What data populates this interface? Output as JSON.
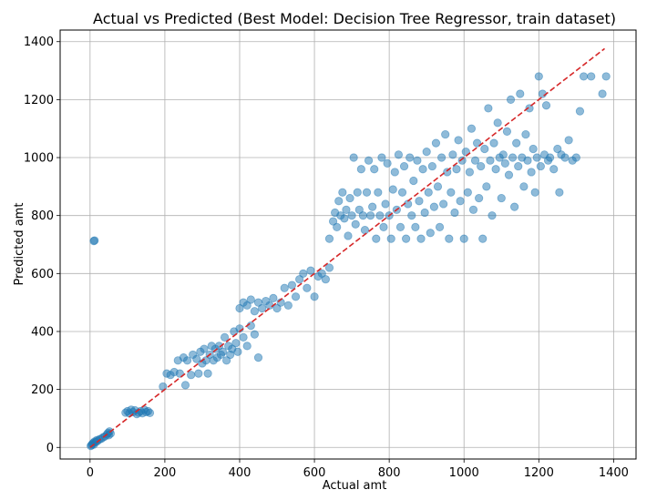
{
  "chart_data": {
    "type": "scatter",
    "title": "Actual vs Predicted (Best Model: Decision Tree Regressor, train dataset)",
    "xlabel": "Actual amt",
    "ylabel": "Predicted amt",
    "xlim": [
      -80,
      1460
    ],
    "ylim": [
      -40,
      1440
    ],
    "xticks": [
      0,
      200,
      400,
      600,
      800,
      1000,
      1200,
      1400
    ],
    "yticks": [
      0,
      200,
      400,
      600,
      800,
      1000,
      1200,
      1400
    ],
    "grid": true,
    "point_color": "#1f77b4",
    "point_alpha": 0.5,
    "reference_line": {
      "style": "dashed",
      "color": "#d62728",
      "x": [
        0,
        1376
      ],
      "y": [
        0,
        1376
      ]
    },
    "series": [
      {
        "points": [
          [
            2,
            5
          ],
          [
            4,
            8
          ],
          [
            6,
            12
          ],
          [
            8,
            15
          ],
          [
            10,
            10
          ],
          [
            12,
            20
          ],
          [
            15,
            18
          ],
          [
            18,
            25
          ],
          [
            20,
            22
          ],
          [
            25,
            28
          ],
          [
            30,
            30
          ],
          [
            35,
            35
          ],
          [
            40,
            38
          ],
          [
            45,
            45
          ],
          [
            48,
            50
          ],
          [
            50,
            42
          ],
          [
            52,
            55
          ],
          [
            55,
            48
          ],
          [
            10,
            712
          ],
          [
            12,
            714
          ],
          [
            95,
            120
          ],
          [
            100,
            125
          ],
          [
            105,
            118
          ],
          [
            110,
            130
          ],
          [
            115,
            122
          ],
          [
            120,
            128
          ],
          [
            125,
            115
          ],
          [
            130,
            120
          ],
          [
            135,
            125
          ],
          [
            140,
            118
          ],
          [
            145,
            130
          ],
          [
            150,
            122
          ],
          [
            155,
            125
          ],
          [
            160,
            119
          ],
          [
            195,
            210
          ],
          [
            205,
            255
          ],
          [
            215,
            250
          ],
          [
            225,
            260
          ],
          [
            235,
            300
          ],
          [
            240,
            255
          ],
          [
            250,
            310
          ],
          [
            255,
            215
          ],
          [
            260,
            300
          ],
          [
            270,
            250
          ],
          [
            275,
            320
          ],
          [
            285,
            305
          ],
          [
            290,
            255
          ],
          [
            295,
            330
          ],
          [
            300,
            290
          ],
          [
            305,
            340
          ],
          [
            310,
            300
          ],
          [
            315,
            255
          ],
          [
            320,
            320
          ],
          [
            325,
            350
          ],
          [
            330,
            300
          ],
          [
            335,
            340
          ],
          [
            340,
            310
          ],
          [
            345,
            350
          ],
          [
            350,
            320
          ],
          [
            355,
            330
          ],
          [
            360,
            380
          ],
          [
            365,
            300
          ],
          [
            370,
            350
          ],
          [
            375,
            320
          ],
          [
            380,
            340
          ],
          [
            385,
            400
          ],
          [
            390,
            360
          ],
          [
            395,
            330
          ],
          [
            400,
            410
          ],
          [
            410,
            380
          ],
          [
            420,
            350
          ],
          [
            430,
            420
          ],
          [
            440,
            390
          ],
          [
            450,
            310
          ],
          [
            400,
            480
          ],
          [
            410,
            500
          ],
          [
            420,
            490
          ],
          [
            430,
            510
          ],
          [
            440,
            470
          ],
          [
            450,
            500
          ],
          [
            460,
            480
          ],
          [
            470,
            505
          ],
          [
            480,
            490
          ],
          [
            490,
            515
          ],
          [
            500,
            480
          ],
          [
            510,
            500
          ],
          [
            520,
            550
          ],
          [
            530,
            490
          ],
          [
            540,
            560
          ],
          [
            550,
            520
          ],
          [
            560,
            580
          ],
          [
            570,
            600
          ],
          [
            580,
            550
          ],
          [
            590,
            610
          ],
          [
            600,
            520
          ],
          [
            610,
            590
          ],
          [
            620,
            600
          ],
          [
            630,
            580
          ],
          [
            640,
            620
          ],
          [
            640,
            720
          ],
          [
            650,
            780
          ],
          [
            655,
            810
          ],
          [
            660,
            760
          ],
          [
            665,
            850
          ],
          [
            670,
            800
          ],
          [
            675,
            880
          ],
          [
            680,
            790
          ],
          [
            685,
            820
          ],
          [
            690,
            730
          ],
          [
            695,
            860
          ],
          [
            700,
            800
          ],
          [
            705,
            1000
          ],
          [
            710,
            770
          ],
          [
            715,
            880
          ],
          [
            720,
            820
          ],
          [
            725,
            960
          ],
          [
            730,
            800
          ],
          [
            735,
            750
          ],
          [
            740,
            880
          ],
          [
            745,
            990
          ],
          [
            750,
            800
          ],
          [
            755,
            830
          ],
          [
            760,
            960
          ],
          [
            765,
            720
          ],
          [
            770,
            880
          ],
          [
            775,
            800
          ],
          [
            780,
            1000
          ],
          [
            785,
            760
          ],
          [
            790,
            840
          ],
          [
            795,
            980
          ],
          [
            800,
            800
          ],
          [
            805,
            720
          ],
          [
            810,
            890
          ],
          [
            815,
            950
          ],
          [
            820,
            820
          ],
          [
            825,
            1010
          ],
          [
            830,
            760
          ],
          [
            835,
            880
          ],
          [
            840,
            970
          ],
          [
            845,
            720
          ],
          [
            850,
            840
          ],
          [
            855,
            1000
          ],
          [
            860,
            800
          ],
          [
            865,
            920
          ],
          [
            870,
            760
          ],
          [
            875,
            990
          ],
          [
            880,
            850
          ],
          [
            885,
            720
          ],
          [
            890,
            960
          ],
          [
            895,
            810
          ],
          [
            900,
            1020
          ],
          [
            905,
            880
          ],
          [
            910,
            740
          ],
          [
            915,
            970
          ],
          [
            920,
            830
          ],
          [
            925,
            1050
          ],
          [
            930,
            900
          ],
          [
            935,
            760
          ],
          [
            940,
            1000
          ],
          [
            945,
            840
          ],
          [
            950,
            1080
          ],
          [
            955,
            950
          ],
          [
            960,
            720
          ],
          [
            965,
            880
          ],
          [
            970,
            1010
          ],
          [
            975,
            810
          ],
          [
            980,
            960
          ],
          [
            985,
            1060
          ],
          [
            990,
            850
          ],
          [
            995,
            990
          ],
          [
            1000,
            720
          ],
          [
            1005,
            1020
          ],
          [
            1010,
            880
          ],
          [
            1015,
            950
          ],
          [
            1020,
            1100
          ],
          [
            1025,
            820
          ],
          [
            1030,
            990
          ],
          [
            1035,
            1050
          ],
          [
            1040,
            860
          ],
          [
            1045,
            970
          ],
          [
            1050,
            720
          ],
          [
            1055,
            1030
          ],
          [
            1060,
            900
          ],
          [
            1065,
            1170
          ],
          [
            1070,
            990
          ],
          [
            1075,
            800
          ],
          [
            1080,
            1050
          ],
          [
            1085,
            960
          ],
          [
            1090,
            1120
          ],
          [
            1095,
            1000
          ],
          [
            1100,
            860
          ],
          [
            1105,
            1010
          ],
          [
            1110,
            980
          ],
          [
            1115,
            1090
          ],
          [
            1120,
            940
          ],
          [
            1125,
            1200
          ],
          [
            1130,
            1000
          ],
          [
            1135,
            830
          ],
          [
            1140,
            1050
          ],
          [
            1145,
            970
          ],
          [
            1150,
            1220
          ],
          [
            1155,
            1000
          ],
          [
            1160,
            900
          ],
          [
            1165,
            1080
          ],
          [
            1170,
            990
          ],
          [
            1175,
            1170
          ],
          [
            1180,
            950
          ],
          [
            1185,
            1030
          ],
          [
            1190,
            880
          ],
          [
            1195,
            1000
          ],
          [
            1200,
            1280
          ],
          [
            1205,
            970
          ],
          [
            1210,
            1220
          ],
          [
            1215,
            1010
          ],
          [
            1220,
            1180
          ],
          [
            1225,
            990
          ],
          [
            1230,
            1000
          ],
          [
            1240,
            960
          ],
          [
            1250,
            1030
          ],
          [
            1255,
            880
          ],
          [
            1260,
            1010
          ],
          [
            1270,
            1000
          ],
          [
            1280,
            1060
          ],
          [
            1290,
            990
          ],
          [
            1300,
            1000
          ],
          [
            1310,
            1160
          ],
          [
            1320,
            1280
          ],
          [
            1340,
            1280
          ],
          [
            1370,
            1220
          ],
          [
            1380,
            1280
          ]
        ]
      }
    ]
  }
}
